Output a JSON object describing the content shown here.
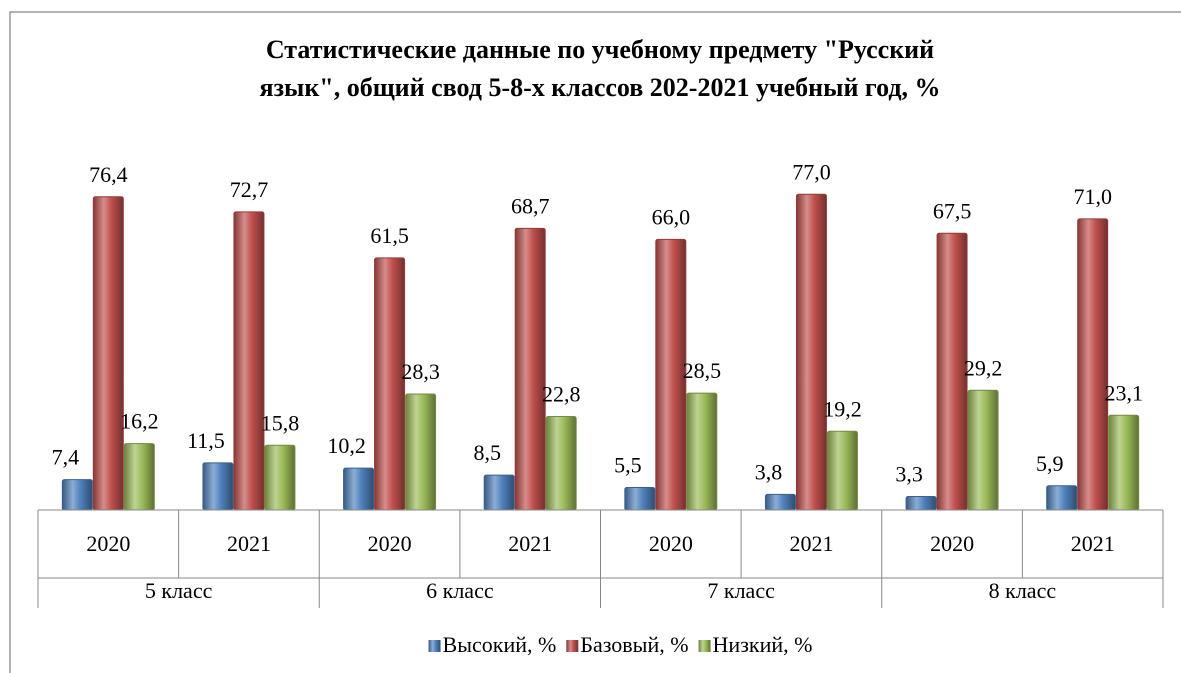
{
  "chart_data": {
    "type": "bar",
    "title": [
      "Статистические данные по учебному  предмету  \"Русский",
      "язык\", общий свод 5-8-х классов 202-2021 учебный год, %"
    ],
    "categories": [
      "2020",
      "2021",
      "2020",
      "2021",
      "2020",
      "2021",
      "2020",
      "2021"
    ],
    "category_groups": [
      "5 класс",
      "6 класс",
      "7 класс",
      "8 класс"
    ],
    "series": [
      {
        "name": "Высокий, %",
        "color": "#4f81bd",
        "values": [
          7.4,
          11.5,
          10.2,
          8.5,
          5.5,
          3.8,
          3.3,
          5.9
        ],
        "value_labels": [
          "7,4",
          "11,5",
          "10,2",
          "8,5",
          "5,5",
          "3,8",
          "3,3",
          "5,9"
        ]
      },
      {
        "name": "Базовый, %",
        "color": "#c0504d",
        "values": [
          76.4,
          72.7,
          61.5,
          68.7,
          66.0,
          77.0,
          67.5,
          71.0
        ],
        "value_labels": [
          "76,4",
          "72,7",
          "61,5",
          "68,7",
          "66,0",
          "77,0",
          "67,5",
          "71,0"
        ]
      },
      {
        "name": "Низкий, %",
        "color": "#9bbb59",
        "values": [
          16.2,
          15.8,
          28.3,
          22.8,
          28.5,
          19.2,
          29.2,
          23.1
        ],
        "value_labels": [
          "16,2",
          "15,8",
          "28,3",
          "22,8",
          "28,5",
          "19,2",
          "29,2",
          "23,1"
        ]
      }
    ],
    "legend": "bottom"
  }
}
